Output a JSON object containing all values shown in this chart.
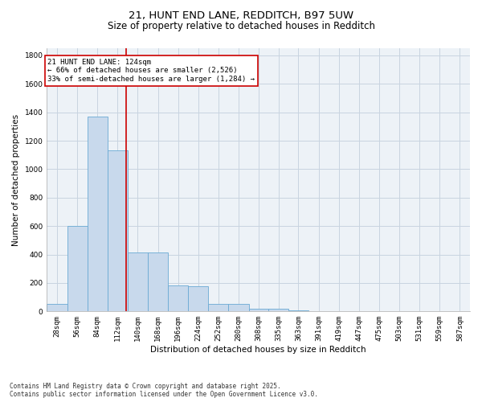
{
  "title_line1": "21, HUNT END LANE, REDDITCH, B97 5UW",
  "title_line2": "Size of property relative to detached houses in Redditch",
  "xlabel": "Distribution of detached houses by size in Redditch",
  "ylabel": "Number of detached properties",
  "bar_color": "#c8d9ec",
  "bar_edge_color": "#6aaad4",
  "grid_color": "#c8d4e0",
  "background_color": "#edf2f7",
  "annotation_box_color": "#cc0000",
  "vline_color": "#cc0000",
  "vline_x": 124,
  "categories": [
    "28sqm",
    "56sqm",
    "84sqm",
    "112sqm",
    "140sqm",
    "168sqm",
    "196sqm",
    "224sqm",
    "252sqm",
    "280sqm",
    "308sqm",
    "335sqm",
    "363sqm",
    "391sqm",
    "419sqm",
    "447sqm",
    "475sqm",
    "503sqm",
    "531sqm",
    "559sqm",
    "587sqm"
  ],
  "bin_edges": [
    14,
    42,
    70,
    98,
    126,
    154,
    182,
    210,
    238,
    266,
    294,
    321.5,
    349,
    377,
    405,
    433,
    461,
    489,
    517,
    545,
    573,
    601
  ],
  "values": [
    50,
    600,
    1370,
    1130,
    415,
    415,
    180,
    175,
    55,
    50,
    20,
    20,
    5,
    2,
    0,
    0,
    0,
    0,
    0,
    0,
    0
  ],
  "ylim": [
    0,
    1850
  ],
  "yticks": [
    0,
    200,
    400,
    600,
    800,
    1000,
    1200,
    1400,
    1600,
    1800
  ],
  "annotation_text": "21 HUNT END LANE: 124sqm\n← 66% of detached houses are smaller (2,526)\n33% of semi-detached houses are larger (1,284) →",
  "footnote1": "Contains HM Land Registry data © Crown copyright and database right 2025.",
  "footnote2": "Contains public sector information licensed under the Open Government Licence v3.0.",
  "title_fontsize": 9.5,
  "subtitle_fontsize": 8.5,
  "label_fontsize": 7.5,
  "tick_fontsize": 6.5,
  "annot_fontsize": 6.5,
  "footnote_fontsize": 5.5
}
